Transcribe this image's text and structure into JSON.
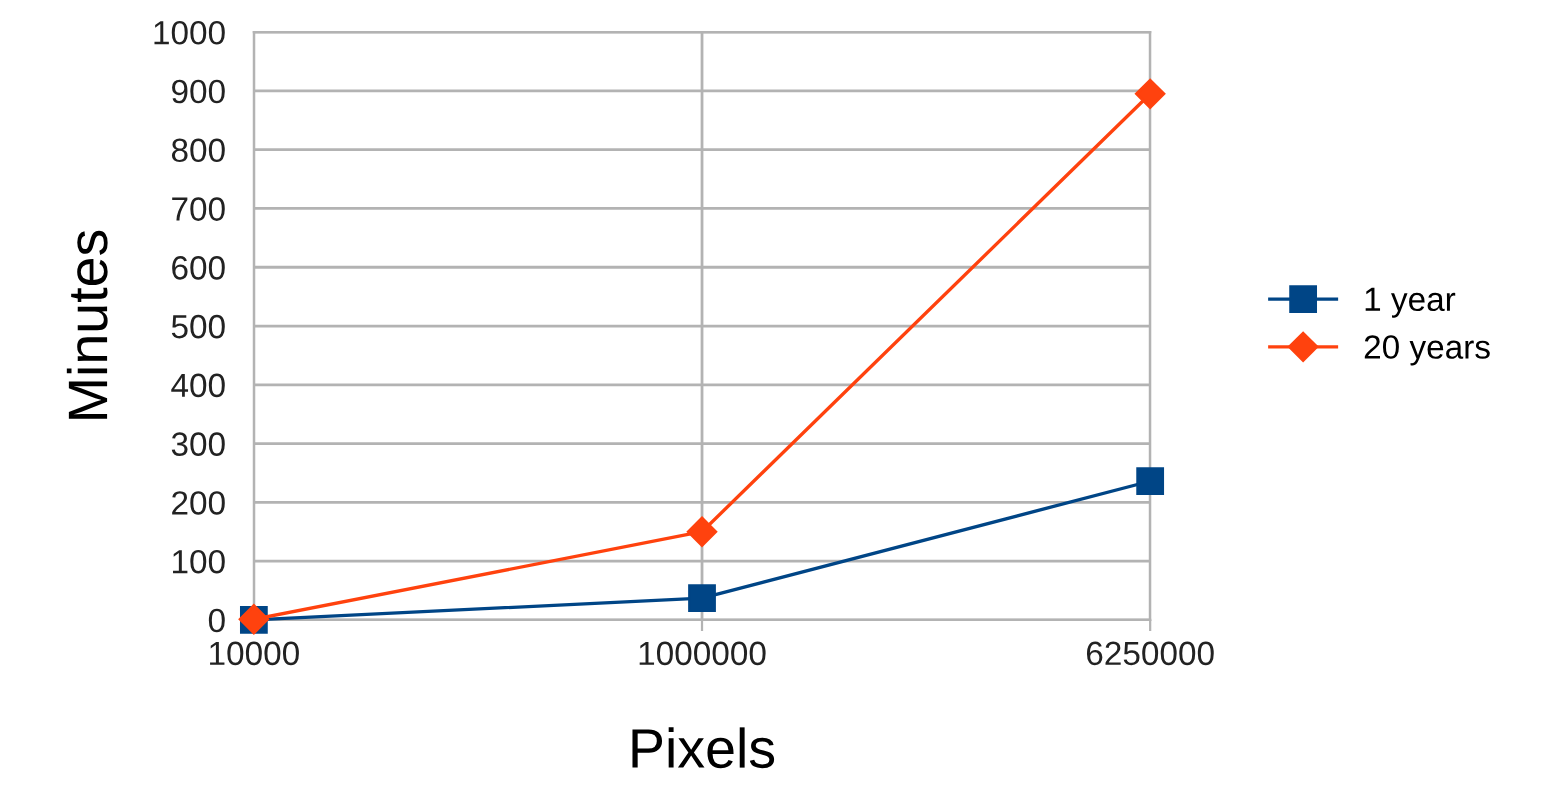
{
  "chart_data": {
    "type": "line",
    "xlabel": "Pixels",
    "ylabel": "Minutes",
    "categories": [
      "10000",
      "1000000",
      "6250000"
    ],
    "series": [
      {
        "name": "1 year",
        "color": "#004586",
        "marker": "square",
        "values": [
          0,
          37,
          236
        ]
      },
      {
        "name": "20 years",
        "color": "#ff420e",
        "marker": "diamond",
        "values": [
          1,
          150,
          895
        ]
      }
    ],
    "ylim": [
      0,
      1000
    ],
    "yticks": [
      0,
      100,
      200,
      300,
      400,
      500,
      600,
      700,
      800,
      900,
      1000
    ],
    "grid": true,
    "legend": "right",
    "line_style": "solid"
  }
}
